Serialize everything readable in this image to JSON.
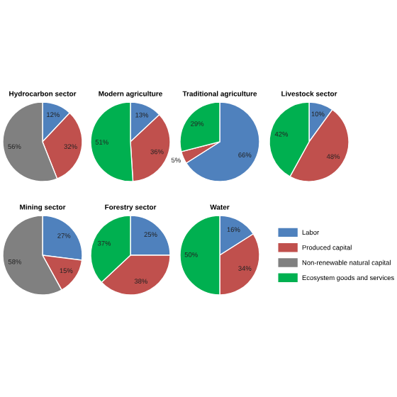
{
  "chart_data": [
    {
      "type": "pie",
      "title": "Hydrocarbon sector",
      "values": [
        12,
        32,
        56,
        0
      ],
      "colors": [
        "#4f81bd",
        "#c0504d",
        "#808080",
        "#00b050"
      ],
      "value_labels": [
        "12%",
        "32%",
        "56%",
        null
      ]
    },
    {
      "type": "pie",
      "title": "Modern agriculture",
      "values": [
        13,
        36,
        0,
        51
      ],
      "colors": [
        "#4f81bd",
        "#c0504d",
        "#808080",
        "#00b050"
      ],
      "value_labels": [
        "13%",
        "36%",
        null,
        "51%"
      ]
    },
    {
      "type": "pie",
      "title": "Traditional agriculture",
      "values": [
        66,
        5,
        0,
        29
      ],
      "colors": [
        "#4f81bd",
        "#c0504d",
        "#808080",
        "#00b050"
      ],
      "value_labels": [
        "66%",
        "5%",
        null,
        "29%"
      ]
    },
    {
      "type": "pie",
      "title": "Livestock sector",
      "values": [
        10,
        48,
        0,
        42
      ],
      "colors": [
        "#4f81bd",
        "#c0504d",
        "#808080",
        "#00b050"
      ],
      "value_labels": [
        "10%",
        "48%",
        null,
        "42%"
      ]
    },
    {
      "type": "pie",
      "title": "Mining sector",
      "values": [
        27,
        15,
        58,
        0
      ],
      "colors": [
        "#4f81bd",
        "#c0504d",
        "#808080",
        "#00b050"
      ],
      "value_labels": [
        "27%",
        "15%",
        "58%",
        null
      ]
    },
    {
      "type": "pie",
      "title": "Forestry sector",
      "values": [
        25,
        38,
        0,
        37
      ],
      "colors": [
        "#4f81bd",
        "#c0504d",
        "#808080",
        "#00b050"
      ],
      "value_labels": [
        "25%",
        "38%",
        null,
        "37%"
      ]
    },
    {
      "type": "pie",
      "title": "Water",
      "categories": [
        "Labor",
        "Produced capital",
        "Non-renewable natural capital",
        "Ecosystem goods and services"
      ],
      "values": [
        16,
        34,
        0,
        50
      ],
      "colors": [
        "#4f81bd",
        "#c0504d",
        "#808080",
        "#00b050"
      ],
      "value_labels": [
        "16%",
        "34%",
        null,
        "50%"
      ],
      "legend": "right"
    }
  ]
}
